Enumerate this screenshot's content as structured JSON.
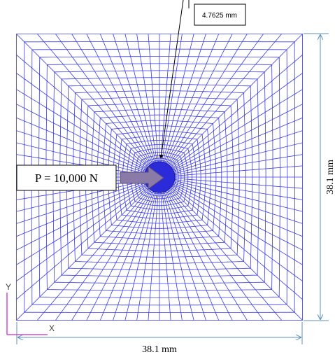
{
  "annotations": {
    "hole_diameter": "4.7625 mm",
    "load": "P = 10,000 N",
    "height": "38.1 mm",
    "width": "38.1 mm"
  },
  "axes": {
    "y": "Y",
    "x": "X"
  }
}
